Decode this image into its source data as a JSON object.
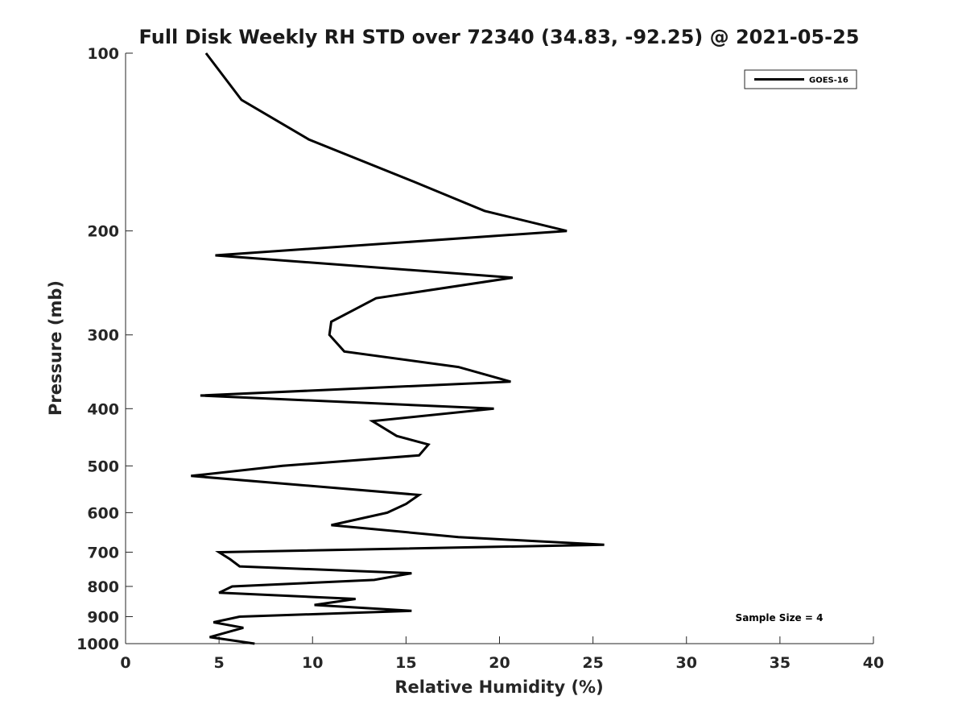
{
  "chart_data": {
    "type": "line",
    "title": "Full Disk Weekly RH STD over 72340 (34.83, -92.25) @ 2021-05-25",
    "xlabel": "Relative Humidity (%)",
    "ylabel": "Pressure (mb)",
    "xlim": [
      0,
      40
    ],
    "ylim": [
      100,
      1000
    ],
    "yscale": "log",
    "y_reversed": true,
    "grid": false,
    "legend_placement": "top-right",
    "x_ticks": [
      0,
      5,
      10,
      15,
      20,
      25,
      30,
      35,
      40
    ],
    "y_ticks": [
      100,
      200,
      300,
      400,
      500,
      600,
      700,
      800,
      900,
      1000
    ],
    "annotation": "Sample Size = 4",
    "series": [
      {
        "name": "GOES-16",
        "color": "#000000",
        "points": [
          [
            4.3,
            100
          ],
          [
            6.2,
            120
          ],
          [
            9.8,
            140
          ],
          [
            15.4,
            165
          ],
          [
            19.2,
            185
          ],
          [
            23.6,
            200
          ],
          [
            4.8,
            220
          ],
          [
            20.7,
            240
          ],
          [
            13.4,
            260
          ],
          [
            11.0,
            285
          ],
          [
            10.9,
            300
          ],
          [
            11.7,
            320
          ],
          [
            17.8,
            340
          ],
          [
            20.6,
            360
          ],
          [
            4.0,
            380
          ],
          [
            19.7,
            400
          ],
          [
            13.2,
            420
          ],
          [
            14.5,
            445
          ],
          [
            16.2,
            460
          ],
          [
            15.7,
            480
          ],
          [
            8.4,
            500
          ],
          [
            3.5,
            520
          ],
          [
            15.7,
            560
          ],
          [
            15.0,
            580
          ],
          [
            14.0,
            600
          ],
          [
            11.0,
            630
          ],
          [
            17.8,
            660
          ],
          [
            25.6,
            680
          ],
          [
            5.0,
            700
          ],
          [
            5.6,
            720
          ],
          [
            6.1,
            740
          ],
          [
            15.3,
            760
          ],
          [
            13.3,
            780
          ],
          [
            5.7,
            800
          ],
          [
            5.0,
            820
          ],
          [
            12.3,
            840
          ],
          [
            10.1,
            860
          ],
          [
            15.3,
            880
          ],
          [
            6.1,
            900
          ],
          [
            4.7,
            920
          ],
          [
            6.3,
            940
          ],
          [
            4.5,
            975
          ],
          [
            6.9,
            1000
          ]
        ]
      }
    ]
  }
}
